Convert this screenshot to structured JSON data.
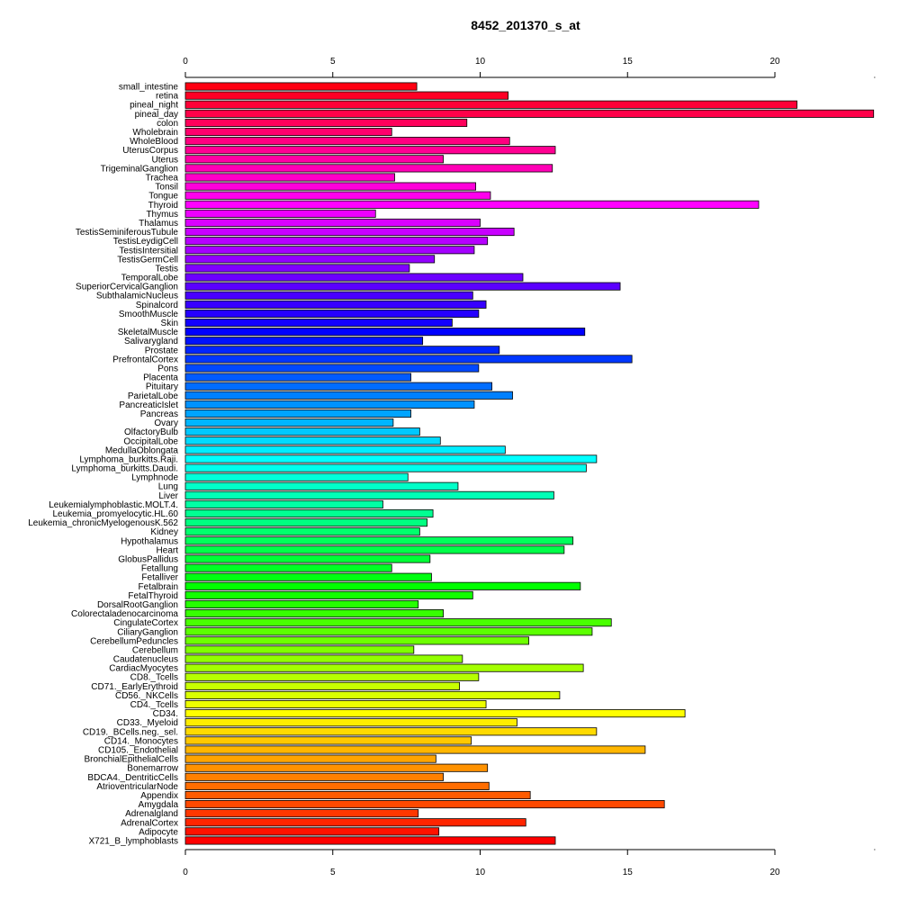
{
  "chart_data": {
    "type": "bar",
    "orientation": "horizontal",
    "title": "8452_201370_s_at",
    "xlabel": "",
    "ylabel": "",
    "xlim": [
      0,
      23.4
    ],
    "x_ticks": [
      0,
      5,
      10,
      15,
      20
    ],
    "grid": false,
    "legend": "none",
    "color_scheme": "rainbow (red at bottom through orange, yellow, green, cyan, blue, violet, magenta to red at top)",
    "categories": [
      "small_intestine",
      "retina",
      "pineal_night",
      "pineal_day",
      "colon",
      "Wholebrain",
      "WholeBlood",
      "UterusCorpus",
      "Uterus",
      "TrigeminalGanglion",
      "Trachea",
      "Tonsil",
      "Tongue",
      "Thyroid",
      "Thymus",
      "Thalamus",
      "TestisSeminiferousTubule",
      "TestisLeydigCell",
      "TestisIntersitial",
      "TestisGermCell",
      "Testis",
      "TemporalLobe",
      "SuperiorCervicalGanglion",
      "SubthalamicNucleus",
      "Spinalcord",
      "SmoothMuscle",
      "Skin",
      "SkeletalMuscle",
      "Salivarygland",
      "Prostate",
      "PrefrontalCortex",
      "Pons",
      "Placenta",
      "Pituitary",
      "ParietalLobe",
      "PancreaticIslet",
      "Pancreas",
      "Ovary",
      "OlfactoryBulb",
      "OccipitalLobe",
      "MedullaOblongata",
      "Lymphoma_burkitts.Raji.",
      "Lymphoma_burkitts.Daudi.",
      "Lymphnode",
      "Lung",
      "Liver",
      "Leukemialymphoblastic.MOLT.4.",
      "Leukemia_promyelocytic.HL.60",
      "Leukemia_chronicMyelogenousK.562",
      "Kidney",
      "Hypothalamus",
      "Heart",
      "GlobusPallidus",
      "Fetallung",
      "Fetalliver",
      "Fetalbrain",
      "FetalThyroid",
      "DorsalRootGanglion",
      "Colorectaladenocarcinoma",
      "CingulateCortex",
      "CiliaryGanglion",
      "CerebellumPeduncles",
      "Cerebellum",
      "Caudatenucleus",
      "CardiacMyocytes",
      "CD8._Tcells",
      "CD71._EarlyErythroid",
      "CD56._NKCells",
      "CD4._Tcells",
      "CD34.",
      "CD33._Myeloid",
      "CD19._BCells.neg._sel.",
      "CD14._Monocytes",
      "CD105._Endothelial",
      "BronchialEpithelialCells",
      "Bonemarrow",
      "BDCA4._DentriticCells",
      "AtrioventricularNode",
      "Appendix",
      "Amygdala",
      "Adrenalgland",
      "AdrenalCortex",
      "Adipocyte",
      "X721_B_lymphoblasts"
    ],
    "values": [
      7.85,
      10.95,
      20.75,
      23.35,
      9.55,
      7.0,
      11.0,
      12.55,
      8.75,
      12.45,
      7.1,
      9.85,
      10.35,
      19.45,
      6.45,
      10.0,
      11.15,
      10.25,
      9.8,
      8.45,
      7.6,
      11.45,
      14.75,
      9.75,
      10.2,
      9.95,
      9.05,
      13.55,
      8.05,
      10.65,
      15.15,
      9.95,
      7.65,
      10.4,
      11.1,
      9.8,
      7.65,
      7.05,
      7.95,
      8.65,
      10.85,
      13.95,
      13.6,
      7.55,
      9.25,
      12.5,
      6.7,
      8.4,
      8.2,
      7.95,
      13.15,
      12.85,
      8.3,
      7.0,
      8.35,
      13.4,
      9.75,
      7.9,
      8.75,
      14.45,
      13.8,
      11.65,
      7.75,
      9.4,
      13.5,
      9.95,
      9.3,
      12.7,
      10.2,
      16.95,
      11.25,
      13.95,
      9.7,
      15.6,
      8.5,
      10.25,
      8.75,
      10.3,
      11.7,
      16.25,
      7.9,
      11.55,
      8.6,
      12.55
    ]
  }
}
